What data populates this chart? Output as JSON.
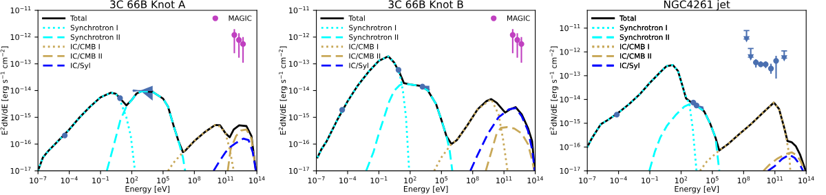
{
  "chart_data": [
    {
      "type": "line",
      "title": "3C 66B Knot A",
      "xlabel": "Energy [eV]",
      "ylabel": "E$^{2}$dN/dE [erg s$^{−1}$ cm$^{−2}$]",
      "log": "xy",
      "legend": "top left",
      "grid": false,
      "xlim": [
        1e-07,
        100000000000000.0
      ],
      "ylim": [
        1e-17,
        1e-11
      ],
      "xticks": [
        {
          "value": 1e-07,
          "label": "10$^{−7}$"
        },
        {
          "value": 0.0001,
          "label": "10$^{−4}$"
        },
        {
          "value": 0.1,
          "label": "10$^{−1}$"
        },
        {
          "value": 100,
          "label": "10$^{2}$"
        },
        {
          "value": 100000.0,
          "label": "10$^{5}$"
        },
        {
          "value": 100000000.0,
          "label": "10$^{8}$"
        },
        {
          "value": 100000000000.0,
          "label": "10$^{11}$"
        },
        {
          "value": 100000000000000.0,
          "label": "10$^{14}$"
        }
      ],
      "yticks": [
        {
          "value": 1e-17,
          "label": "10$^{−17}$"
        },
        {
          "value": 1e-16,
          "label": "10$^{−16}$"
        },
        {
          "value": 1e-15,
          "label": "10$^{−15}$"
        },
        {
          "value": 1e-14,
          "label": "10$^{−14}$"
        },
        {
          "value": 1e-13,
          "label": "10$^{−13}$"
        },
        {
          "value": 1e-12,
          "label": "10$^{−12}$"
        },
        {
          "value": 1e-11,
          "label": "10$^{−11}$"
        }
      ],
      "series": [
        {
          "name": "Total",
          "type": "line",
          "line_style": "solid",
          "color": "#000000",
          "x": [
            1e-07,
            3e-07,
            1e-06,
            1e-05,
            0.0001,
            0.001,
            0.01,
            0.1,
            1,
            3,
            10,
            30,
            100,
            300,
            1000,
            10000.0,
            100000.0,
            300000.0,
            1000000.0,
            3000000.0,
            8000000.0,
            13000000.0,
            100000000.0,
            1000000000.0,
            10000000000.0,
            30000000000.0,
            100000000000.0,
            250000000000.0,
            600000000000.0,
            2000000000000.0,
            10000000000000.0,
            30000000000000.0,
            80000000000000.0
          ],
          "values": [
            1e-17,
            3.2e-17,
            5.6e-17,
            1.4e-16,
            3.5e-16,
            1e-15,
            2.5e-15,
            5.6e-15,
            8.3e-15,
            7.6e-15,
            4.5e-15,
            2.8e-15,
            4.5e-15,
            7.9e-15,
            9.5e-15,
            8.9e-15,
            5e-15,
            2.5e-15,
            5e-16,
            1.3e-16,
            5e-17,
            5.6e-17,
            1.3e-16,
            2.8e-16,
            5.2e-16,
            5e-16,
            2.5e-16,
            1.8e-16,
            3.5e-16,
            5e-16,
            4.7e-16,
            2e-16,
            1e-17
          ]
        },
        {
          "name": "Synchrotron I",
          "type": "line",
          "line_style": "dotted",
          "color": "#00ffff",
          "x": [
            1e-07,
            3e-07,
            1e-06,
            1e-05,
            0.0001,
            0.001,
            0.01,
            0.1,
            1,
            3,
            10,
            30,
            80,
            200
          ],
          "values": [
            1e-17,
            3.2e-17,
            5.6e-17,
            1.4e-16,
            3.5e-16,
            1e-15,
            2.5e-15,
            5.6e-15,
            8.3e-15,
            7.6e-15,
            3.2e-15,
            1e-15,
            2e-16,
            1e-17
          ]
        },
        {
          "name": "Synchrotron II",
          "type": "line",
          "line_style": "dashed",
          "color": "#00ffff",
          "x": [
            0.4,
            2,
            8,
            30,
            100,
            300,
            1000,
            10000.0,
            100000.0,
            300000.0,
            1000000.0,
            3000000.0,
            8000000.0,
            13000000.0
          ],
          "values": [
            1e-17,
            1e-16,
            7.9e-16,
            2.5e-15,
            4.5e-15,
            7.9e-15,
            9.5e-15,
            8.9e-15,
            5e-15,
            2.5e-15,
            5e-16,
            1.3e-16,
            3.2e-17,
            1e-17
          ]
        },
        {
          "name": "IC/CMB I",
          "type": "line",
          "line_style": "dotted",
          "color": "#c8a858",
          "x": [
            300000.0,
            1000000.0,
            10000000.0,
            100000000.0,
            1000000000.0,
            10000000000.0,
            30000000000.0,
            100000000000.0,
            250000000000.0,
            600000000000.0
          ],
          "values": [
            1e-17,
            2e-17,
            5.4e-17,
            1.3e-16,
            2.8e-16,
            5.2e-16,
            4.5e-16,
            2.5e-16,
            6.3e-17,
            1e-17
          ]
        },
        {
          "name": "IC/CMB II",
          "type": "line",
          "line_style": "dashed",
          "color": "#c8a858",
          "x": [
            160000000000.0,
            300000000000.0,
            1000000000000.0,
            3000000000000.0,
            10000000000000.0,
            30000000000000.0,
            80000000000000.0
          ],
          "values": [
            1e-17,
            6.3e-17,
            2e-16,
            3.2e-16,
            3.5e-16,
            1.6e-16,
            1e-17
          ]
        },
        {
          "name": "IC/Syl",
          "type": "line",
          "line_style": "dashed",
          "color": "#0000ff",
          "x": [
            7000000000.0,
            30000000000.0,
            100000000000.0,
            300000000000.0,
            1000000000000.0,
            5000000000000.0,
            16000000000000.0,
            40000000000000.0,
            80000000000000.0
          ],
          "values": [
            1e-17,
            2.5e-17,
            5e-17,
            7.9e-17,
            1.1e-16,
            1.6e-16,
            1.4e-16,
            5e-17,
            1e-17
          ]
        },
        {
          "type": "scatter",
          "marker": "circle",
          "color": "#4a6fb0",
          "x": [
            3.7e-05,
            7.4
          ],
          "values": [
            2.1e-16,
            5.2e-15
          ]
        },
        {
          "type": "line",
          "line_style": "solid",
          "color": "#4a6fb0",
          "x": [
            130,
            630,
            10000.0
          ],
          "values": [
            1e-14,
            1e-14,
            1e-14
          ],
          "lower": [
            8.9e-15,
            1e-14,
            4.2e-15
          ],
          "upper": [
            1.1e-14,
            1e-14,
            1.5e-14
          ]
        },
        {
          "name": "MAGIC",
          "type": "scatter",
          "marker": "circle",
          "color": "#c040c0",
          "x": [
            690000000000.0,
            1900000000000.0,
            4700000000000.0
          ],
          "values": [
            1.2e-12,
            7.8e-13,
            5.5e-13
          ],
          "errors": [
            [
              2.5e-13,
              2e-12
            ],
            [
              1.7e-13,
              1.4e-12
            ],
            [
              1.1e-13,
              1e-12
            ]
          ]
        }
      ]
    },
    {
      "type": "line",
      "title": "3C 66B Knot B",
      "xlabel": "Energy [eV]",
      "ylabel": "E$^{2}$dN/dE [erg s$^{−1}$ cm$^{−2}$]",
      "log": "xy",
      "legend": "top left",
      "grid": false,
      "xlim": [
        1e-07,
        100000000000000.0
      ],
      "ylim": [
        1e-17,
        1e-11
      ],
      "xticks": [
        {
          "value": 1e-07,
          "label": "10$^{−7}$"
        },
        {
          "value": 0.0001,
          "label": "10$^{−4}$"
        },
        {
          "value": 0.1,
          "label": "10$^{−1}$"
        },
        {
          "value": 100,
          "label": "10$^{2}$"
        },
        {
          "value": 100000.0,
          "label": "10$^{5}$"
        },
        {
          "value": 100000000.0,
          "label": "10$^{8}$"
        },
        {
          "value": 100000000000.0,
          "label": "10$^{11}$"
        },
        {
          "value": 100000000000000.0,
          "label": "10$^{14}$"
        }
      ],
      "yticks": [
        {
          "value": 1e-17,
          "label": "10$^{−17}$"
        },
        {
          "value": 1e-16,
          "label": "10$^{−16}$"
        },
        {
          "value": 1e-15,
          "label": "10$^{−15}$"
        },
        {
          "value": 1e-14,
          "label": "10$^{−14}$"
        },
        {
          "value": 1e-13,
          "label": "10$^{−13}$"
        },
        {
          "value": 1e-12,
          "label": "10$^{−12}$"
        },
        {
          "value": 1e-11,
          "label": "10$^{−11}$"
        }
      ],
      "series": [
        {
          "name": "Total",
          "type": "line",
          "line_style": "solid",
          "color": "#000000",
          "x": [
            1.3e-07,
            3e-07,
            1e-06,
            1e-05,
            0.0001,
            0.001,
            0.01,
            0.1,
            0.8,
            3,
            10,
            25,
            100,
            1000,
            5000.0,
            30000.0,
            100000.0,
            300000.0,
            900000.0,
            3000000.0,
            30000000.0,
            300000000.0,
            2000000000.0,
            6000000000.0,
            20000000000.0,
            130000000000.0,
            400000000000.0,
            1300000000000.0,
            5000000000000.0,
            20000000000000.0,
            50000000000000.0,
            90000000000000.0
          ],
          "values": [
            3.2e-17,
            6.3e-17,
            1.3e-16,
            7.9e-16,
            4e-15,
            1.6e-14,
            5e-14,
            1.3e-13,
            1.9e-13,
            1.1e-13,
            4.5e-14,
            1.9e-14,
            1.7e-14,
            1.5e-14,
            1e-14,
            3.2e-15,
            7.9e-16,
            2e-16,
            1e-16,
            1.4e-16,
            5e-16,
            2e-15,
            4e-15,
            4.8e-15,
            3.5e-15,
            1.5e-15,
            2e-15,
            2.4e-15,
            1.3e-15,
            4e-16,
            1.3e-16,
            1e-17
          ]
        },
        {
          "name": "Synchrotron I",
          "type": "line",
          "line_style": "dotted",
          "color": "#00ffff",
          "x": [
            1.3e-07,
            3e-07,
            1e-06,
            1e-05,
            0.0001,
            0.001,
            0.01,
            0.1,
            0.8,
            3,
            10,
            20,
            40,
            80
          ],
          "values": [
            3.2e-17,
            6.3e-17,
            1.3e-16,
            7.9e-16,
            4e-15,
            1.6e-14,
            5e-14,
            1.3e-13,
            1.9e-13,
            1.1e-13,
            4e-14,
            1e-14,
            1e-15,
            1e-17
          ]
        },
        {
          "name": "Synchrotron II",
          "type": "line",
          "line_style": "dashed",
          "color": "#00ffff",
          "x": [
            0.006,
            0.03,
            0.1,
            1,
            3,
            10,
            25,
            100,
            1000,
            5000.0,
            30000.0,
            100000.0,
            300000.0,
            600000.0,
            1100000.0
          ],
          "values": [
            1e-17,
            5e-17,
            2.5e-16,
            4e-15,
            1e-14,
            1.6e-14,
            1.8e-14,
            1.7e-14,
            1.5e-14,
            1e-14,
            3.2e-15,
            7.9e-16,
            2e-16,
            6.3e-17,
            1e-17
          ]
        },
        {
          "name": "IC/CMB I",
          "type": "line",
          "line_style": "dotted",
          "color": "#c8a858",
          "x": [
            20000.0,
            100000.0,
            900000.0,
            3000000.0,
            30000000.0,
            300000000.0,
            6000000000.0,
            30000000000.0,
            80000000000.0,
            220000000000.0
          ],
          "values": [
            1e-17,
            3.2e-17,
            1e-16,
            1.4e-16,
            5e-16,
            2e-15,
            4.8e-15,
            1.3e-15,
            1.6e-16,
            1e-17
          ]
        },
        {
          "name": "IC/CMB II",
          "type": "line",
          "line_style": "dashed",
          "color": "#c8a858",
          "x": [
            1800000000.0,
            6000000000.0,
            20000000000.0,
            50000000000.0,
            200000000000.0,
            1000000000000.0,
            5000000000000.0,
            20000000000000.0,
            50000000000000.0,
            80000000000000.0
          ],
          "values": [
            1e-17,
            5e-17,
            2.5e-16,
            4e-16,
            4.3e-16,
            3.8e-16,
            2.5e-16,
            1e-16,
            2.5e-17,
            1e-17
          ]
        },
        {
          "name": "IC/Syl",
          "type": "line",
          "line_style": "dashed",
          "color": "#0000ff",
          "x": [
            60000000.0,
            300000000.0,
            3000000000.0,
            30000000000.0,
            300000000000.0,
            1300000000000.0,
            5000000000000.0,
            20000000000000.0,
            50000000000000.0,
            90000000000000.0
          ],
          "values": [
            1e-17,
            4e-17,
            2.5e-16,
            1e-15,
            2e-15,
            2.2e-15,
            1.1e-15,
            3.2e-16,
            6.3e-17,
            1e-17
          ]
        },
        {
          "type": "scatter",
          "marker": "circle",
          "color": "#4a6fb0",
          "x": [
            3e-05,
            7.6,
            1500.0
          ],
          "values": [
            1.9e-15,
            5.9e-14,
            1.4e-14
          ]
        },
        {
          "type": "line",
          "line_style": "solid",
          "color": "#4a6fb0",
          "x": [
            2500.0,
            7000.0
          ],
          "values": [
            1.35e-14,
            1.1e-14
          ],
          "lower": [
            1.2e-14,
            8e-15
          ],
          "upper": [
            1.5e-14,
            1.5e-14
          ]
        },
        {
          "name": "MAGIC",
          "type": "scatter",
          "marker": "circle",
          "color": "#c040c0",
          "x": [
            690000000000.0,
            1900000000000.0,
            4700000000000.0
          ],
          "values": [
            1.2e-12,
            7.8e-13,
            5.5e-13
          ],
          "errors": [
            [
              2.5e-13,
              2e-12
            ],
            [
              1.7e-13,
              1.4e-12
            ],
            [
              1.1e-13,
              1e-12
            ]
          ]
        }
      ]
    },
    {
      "type": "line",
      "title": "NGC4261 jet",
      "xlabel": "Energy [eV]",
      "ylabel": "E$^{2}$dN/dE [erg s$^{−1}$ cm$^{−2}$]",
      "log": "xy",
      "legend": "top left",
      "grid": false,
      "xlim": [
        1e-07,
        100000000000000.0
      ],
      "ylim": [
        1e-17,
        5.6e-11
      ],
      "xticks": [
        {
          "value": 1e-07,
          "label": "10$^{−7}$"
        },
        {
          "value": 0.0001,
          "label": "10$^{−4}$"
        },
        {
          "value": 0.1,
          "label": "10$^{−1}$"
        },
        {
          "value": 100,
          "label": "10$^{2}$"
        },
        {
          "value": 100000.0,
          "label": "10$^{5}$"
        },
        {
          "value": 100000000.0,
          "label": "10$^{8}$"
        },
        {
          "value": 100000000000.0,
          "label": "10$^{11}$"
        },
        {
          "value": 100000000000000.0,
          "label": "10$^{14}$"
        }
      ],
      "yticks": [
        {
          "value": 1e-17,
          "label": "10$^{−17}$"
        },
        {
          "value": 1e-16,
          "label": "10$^{−16}$"
        },
        {
          "value": 1e-15,
          "label": "10$^{−15}$"
        },
        {
          "value": 1e-14,
          "label": "10$^{−14}$"
        },
        {
          "value": 1e-13,
          "label": "10$^{−13}$"
        },
        {
          "value": 1e-12,
          "label": "10$^{−12}$"
        },
        {
          "value": 1e-11,
          "label": "10$^{−11}$"
        }
      ],
      "series": [
        {
          "name": "Total",
          "type": "line",
          "line_style": "solid",
          "color": "#000000",
          "x": [
            1e-07,
            3e-07,
            2e-06,
            1e-05,
            0.0001,
            0.001,
            0.01,
            0.1,
            1,
            4,
            16,
            50,
            130,
            300,
            1000,
            3000.0,
            16000.0,
            60000.0,
            200000.0,
            460000.0,
            3000000.0,
            30000000.0,
            500000000.0,
            10000000000.0,
            80000000000.0,
            250000000000.0,
            800000000000.0,
            1600000000000.0,
            4000000000000.0,
            10000000000000.0,
            25000000000000.0,
            90000000000000.0
          ],
          "values": [
            1e-16,
            2.5e-16,
            9.1e-16,
            1.4e-15,
            2.8e-15,
            6.3e-15,
            1.6e-14,
            5e-14,
            1.4e-13,
            2.5e-13,
            2.8e-13,
            1.6e-13,
            4e-14,
            1.1e-14,
            7.4e-15,
            5.6e-15,
            3.2e-15,
            1e-15,
            2.5e-16,
            7.2e-17,
            1.3e-16,
            3.2e-16,
            9.1e-16,
            3.2e-15,
            7.4e-15,
            4e-15,
            6.3e-16,
            1.8e-16,
            1.6e-16,
            1.1e-16,
            5e-17,
            1e-17
          ]
        },
        {
          "name": "Synchrotron I",
          "type": "line",
          "line_style": "dotted",
          "color": "#00ffff",
          "x": [
            1e-07,
            3e-07,
            2e-06,
            1e-05,
            0.0001,
            0.001,
            0.01,
            0.1,
            1,
            4,
            16,
            50,
            200,
            630,
            1300.0,
            3000.0
          ],
          "values": [
            1e-16,
            2.5e-16,
            9.1e-16,
            1.4e-15,
            2.8e-15,
            6.3e-15,
            1.6e-14,
            5e-14,
            1.4e-13,
            2.5e-13,
            2.8e-13,
            1.6e-13,
            2e-14,
            6.3e-15,
            6.3e-16,
            1e-17
          ]
        },
        {
          "name": "Synchrotron II",
          "type": "line",
          "line_style": "dashed",
          "color": "#00ffff",
          "x": [
            0.09,
            0.3,
            1,
            4.6,
            30,
            200,
            630,
            3000.0,
            16000.0,
            60000.0,
            200000.0,
            460000.0
          ],
          "values": [
            1e-17,
            6.3e-17,
            2.5e-16,
            8.1e-16,
            2.2e-15,
            5e-15,
            6.3e-15,
            5.6e-15,
            3.2e-15,
            1e-15,
            2.5e-16,
            1e-17
          ]
        },
        {
          "name": "IC/CMB I",
          "type": "line",
          "line_style": "dotted",
          "color": "#c8a858",
          "x": [
            6500.0,
            30000.0,
            460000.0,
            3000000.0,
            30000000.0,
            500000000.0,
            10000000000.0,
            80000000000.0,
            250000000000.0,
            800000000000.0,
            1600000000000.0,
            2500000000000.0,
            3000000000000.0
          ],
          "values": [
            1e-17,
            2.5e-17,
            7.2e-17,
            1.3e-16,
            3.2e-16,
            9.1e-16,
            3.2e-15,
            7.4e-15,
            4e-15,
            6.3e-16,
            1.3e-16,
            4e-17,
            1e-17
          ]
        },
        {
          "name": "IC/CMB II",
          "type": "line",
          "line_style": "dashed",
          "color": "#c8a858",
          "x": [
            8000000000.0,
            30000000000.0,
            160000000000.0,
            1000000000000.0,
            4000000000000.0,
            13000000000000.0,
            30000000000000.0,
            70000000000000.0
          ],
          "values": [
            1e-17,
            1.8e-17,
            3.2e-17,
            5e-17,
            6e-17,
            4.5e-17,
            2.5e-17,
            1e-17
          ]
        },
        {
          "name": "IC/Syl",
          "type": "line",
          "line_style": "dashed",
          "color": "#0000ff",
          "x": [
            22000000000.0,
            100000000000.0,
            500000000000.0,
            2500000000000.0,
            8000000000000.0,
            25000000000000.0,
            50000000000000.0
          ],
          "values": [
            1e-17,
            1.6e-17,
            3.2e-17,
            4.7e-17,
            3.5e-17,
            1.8e-17,
            1e-17
          ]
        },
        {
          "type": "scatter",
          "marker": "circle",
          "color": "#4a6fb0",
          "x": [
            6.8e-05,
            1500.0,
            3000.0
          ],
          "values": [
            2.3e-15,
            7.4e-15,
            5.6e-15
          ]
        },
        {
          "type": "line",
          "line_style": "solid",
          "color": "#4a6fb0",
          "x": [
            6000.0,
            14000.0
          ],
          "values": [
            5e-15,
            4e-15
          ],
          "lower": [
            4.5e-15,
            3e-15
          ],
          "upper": [
            5.5e-15,
            5e-15
          ]
        },
        {
          "type": "scatter",
          "marker": "circle",
          "color": "#4a6fb0",
          "x": [
            1500000000.0,
            4400000000.0,
            13000000000.0,
            42000000000.0,
            130000000000.0
          ],
          "values": [
            3.6e-13,
            3e-13,
            3e-13,
            2e-13,
            4.2e-13
          ],
          "errors": [
            [
              2.2e-13,
              4.9e-13
            ],
            [
              2.3e-13,
              4e-13
            ],
            [
              2.1e-13,
              4e-13
            ],
            [
              1.2e-13,
              3.2e-13
            ],
            [
              7.6e-14,
              6.8e-13
            ]
          ]
        },
        {
          "type": "scatter",
          "marker": "triangle",
          "color": "#4a6fb0",
          "x": [
            190000000.0,
            480000000.0,
            780000000000.0
          ],
          "values": [
            3.5e-12,
            6e-13,
            5.5e-13
          ],
          "errors": [
            [
              3.5e-12,
              7.9e-12
            ],
            [
              6e-13,
              1.4e-12
            ],
            [
              5.5e-13,
              1.1e-12
            ]
          ]
        }
      ]
    }
  ]
}
